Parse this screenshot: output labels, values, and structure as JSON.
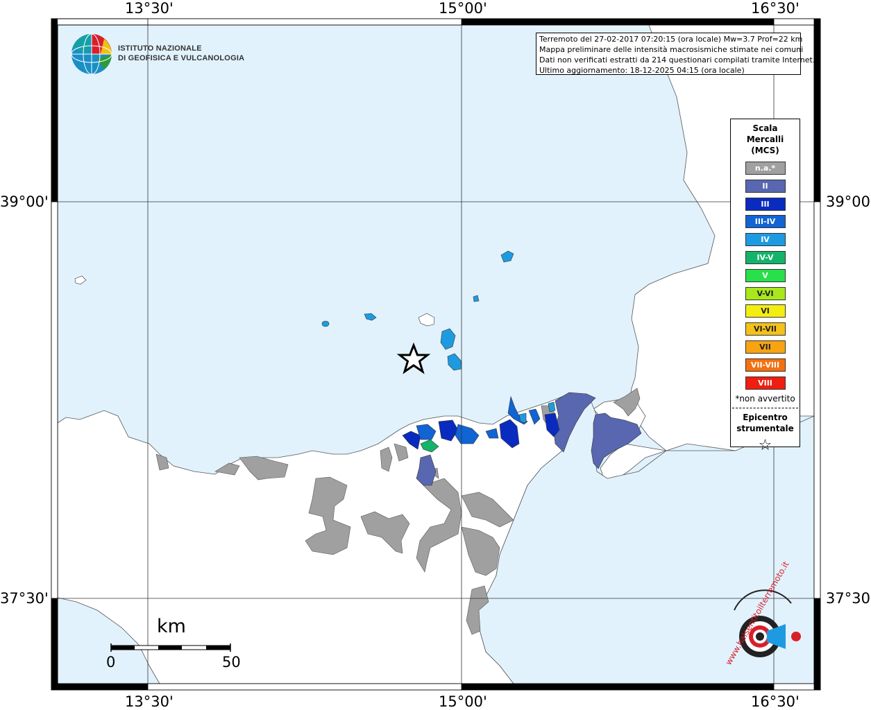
{
  "map": {
    "coordinate_labels": {
      "top": [
        "13°30'",
        "15°00'",
        "16°30'"
      ],
      "bottom": [
        "13°30'",
        "15°00'",
        "16°30'"
      ],
      "left": [
        "39°00'",
        "37°30'"
      ],
      "right": [
        "39°00'",
        "37°30'"
      ]
    },
    "info_lines": [
      "Terremoto del 27-02-2017 07:20:15 (ora locale) Mw=3.7 Prof=22 km",
      "Mappa preliminare delle intensità macrosismiche stimate nei comuni",
      "Dati non verificati estratti da 214 questionari compilati tramite Internet.",
      "Ultimo aggiornamento: 18-12-2025 04:15 (ora locale)"
    ],
    "logo": {
      "line1": "ISTITUTO NAZIONALE",
      "line2": "DI GEOFISICA E VULCANOLOGIA"
    },
    "legend": {
      "title_lines": [
        "Scala",
        "Mercalli",
        "(MCS)"
      ],
      "items": [
        {
          "label": "n.a.*",
          "color": "#a0a0a0"
        },
        {
          "label": "II",
          "color": "#5867b0"
        },
        {
          "label": "III",
          "color": "#0a2bc0"
        },
        {
          "label": "III-IV",
          "color": "#1064d4"
        },
        {
          "label": "IV",
          "color": "#1e9be0"
        },
        {
          "label": "IV-V",
          "color": "#14b36a"
        },
        {
          "label": "V",
          "color": "#27e04a"
        },
        {
          "label": "V-VI",
          "color": "#a8e81c"
        },
        {
          "label": "VI",
          "color": "#f4ee10"
        },
        {
          "label": "VI-VII",
          "color": "#f4c218"
        },
        {
          "label": "VII",
          "color": "#f8a410"
        },
        {
          "label": "VII-VIII",
          "color": "#f67010"
        },
        {
          "label": "VIII",
          "color": "#f01e10"
        }
      ],
      "note": "*non avvertito",
      "epicenter_lines": [
        "Epicentro",
        "strumentale"
      ],
      "epicenter_symbol": "☆"
    },
    "scale_bar": {
      "unit": "km",
      "min": "0",
      "max": "50"
    },
    "watermark": "www.haisentitoilterremoto.it",
    "colors": {
      "sea": "#e1f2fd",
      "land": "#ffffff",
      "not_available": "#a0a0a0"
    }
  }
}
